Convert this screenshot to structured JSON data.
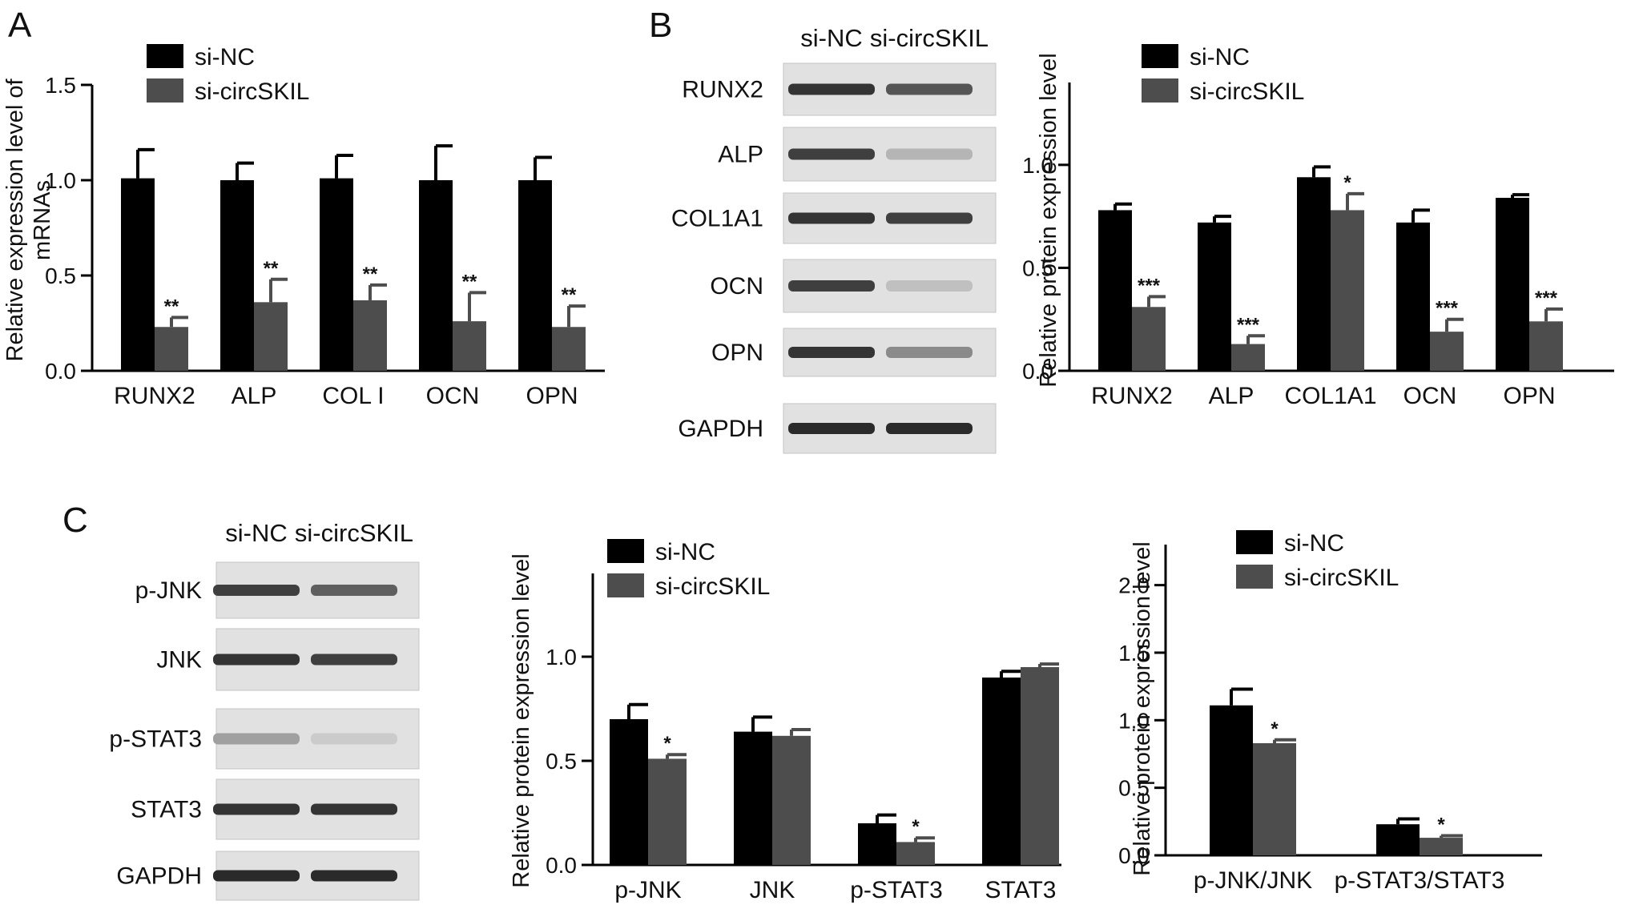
{
  "panels": {
    "A": "A",
    "B": "B",
    "C": "C"
  },
  "colors": {
    "si_nc": "#000000",
    "si_circskil": "#4d4d4d"
  },
  "blots": [
    {
      "id": "B",
      "headers": [
        "si-NC",
        "si-circSKIL"
      ],
      "labels": [
        "RUNX2",
        "ALP",
        "COL1A1",
        "OCN",
        "OPN",
        "GAPDH"
      ],
      "band_intensity": [
        [
          0.85,
          0.7
        ],
        [
          0.8,
          0.25
        ],
        [
          0.85,
          0.8
        ],
        [
          0.8,
          0.2
        ],
        [
          0.85,
          0.45
        ],
        [
          0.9,
          0.9
        ]
      ]
    },
    {
      "id": "C",
      "headers": [
        "si-NC",
        "si-circSKIL"
      ],
      "labels": [
        "p-JNK",
        "JNK",
        "p-STAT3",
        "STAT3",
        "GAPDH"
      ],
      "band_intensity": [
        [
          0.8,
          0.65
        ],
        [
          0.85,
          0.8
        ],
        [
          0.35,
          0.15
        ],
        [
          0.85,
          0.85
        ],
        [
          0.9,
          0.9
        ]
      ]
    }
  ],
  "chart_data": [
    {
      "id": "A",
      "type": "bar",
      "ylabel": "Relative expression level of\nmRNAs",
      "ylim": [
        0,
        1.5
      ],
      "yticks": [
        "0.0",
        "0.5",
        "1.0",
        "1.5"
      ],
      "categories": [
        "RUNX2",
        "ALP",
        "COL I",
        "OCN",
        "OPN"
      ],
      "legend": "top-left",
      "series": [
        {
          "name": "si-NC",
          "values": [
            1.01,
            1.0,
            1.01,
            1.0,
            1.0
          ],
          "errors": [
            0.15,
            0.09,
            0.12,
            0.18,
            0.12
          ]
        },
        {
          "name": "si-circSKIL",
          "values": [
            0.23,
            0.36,
            0.37,
            0.26,
            0.23
          ],
          "errors": [
            0.05,
            0.12,
            0.08,
            0.15,
            0.11
          ]
        }
      ],
      "annotations": [
        "**",
        "**",
        "**",
        "**",
        "**"
      ]
    },
    {
      "id": "B",
      "type": "bar",
      "ylabel": "Relative protein expression level",
      "ylim": [
        0,
        1.4
      ],
      "yticks": [
        "0.0",
        "0.5",
        "1.0"
      ],
      "categories": [
        "RUNX2",
        "ALP",
        "COL1A1",
        "OCN",
        "OPN"
      ],
      "legend": "top-left",
      "series": [
        {
          "name": "si-NC",
          "values": [
            0.78,
            0.72,
            0.94,
            0.72,
            0.84
          ],
          "errors": [
            0.03,
            0.03,
            0.05,
            0.06,
            0.015
          ]
        },
        {
          "name": "si-circSKIL",
          "values": [
            0.31,
            0.13,
            0.78,
            0.19,
            0.24
          ],
          "errors": [
            0.05,
            0.04,
            0.08,
            0.06,
            0.06
          ]
        }
      ],
      "annotations": [
        "***",
        "***",
        "*",
        "***",
        "***"
      ]
    },
    {
      "id": "C1",
      "type": "bar",
      "ylabel": "Relative protein expression level",
      "ylim": [
        0,
        1.4
      ],
      "yticks": [
        "0.0",
        "0.5",
        "1.0"
      ],
      "categories": [
        "p-JNK",
        "JNK",
        "p-STAT3",
        "STAT3"
      ],
      "legend": "top-left",
      "series": [
        {
          "name": "si-NC",
          "values": [
            0.7,
            0.64,
            0.2,
            0.9
          ],
          "errors": [
            0.07,
            0.07,
            0.04,
            0.03
          ]
        },
        {
          "name": "si-circSKIL",
          "values": [
            0.51,
            0.62,
            0.11,
            0.95
          ],
          "errors": [
            0.02,
            0.03,
            0.02,
            0.015
          ]
        }
      ],
      "annotations": [
        "*",
        "",
        "*",
        ""
      ]
    },
    {
      "id": "C2",
      "type": "bar",
      "ylabel": "Relative protein expression level",
      "ylim": [
        0,
        2.3
      ],
      "yticks": [
        "0.0",
        "0.5",
        "1.0",
        "1.5",
        "2.0"
      ],
      "categories": [
        "p-JNK/JNK",
        "p-STAT3/STAT3"
      ],
      "legend": "top-left",
      "series": [
        {
          "name": "si-NC",
          "values": [
            1.11,
            0.23
          ],
          "errors": [
            0.12,
            0.04
          ]
        },
        {
          "name": "si-circSKIL",
          "values": [
            0.83,
            0.13
          ],
          "errors": [
            0.025,
            0.015
          ]
        }
      ],
      "annotations": [
        "*",
        "*"
      ]
    }
  ]
}
